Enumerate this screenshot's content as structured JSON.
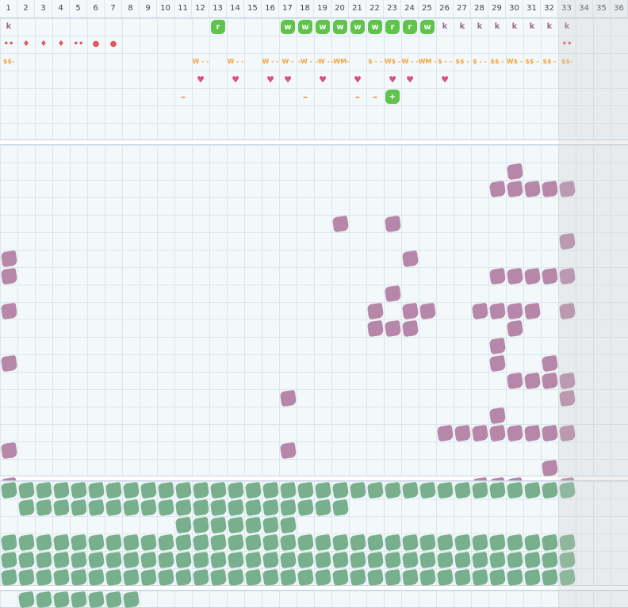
{
  "header": {
    "columns": [
      "1",
      "2",
      "3",
      "4",
      "5",
      "6",
      "7",
      "8",
      "9",
      "10",
      "11",
      "12",
      "13",
      "14",
      "15",
      "16",
      "17",
      "18",
      "19",
      "20",
      "21",
      "22",
      "23",
      "24",
      "25",
      "26",
      "27",
      "28",
      "29",
      "30",
      "31",
      "32",
      "33",
      "34",
      "35",
      "36"
    ]
  },
  "colors": {
    "k": "#9a6a8c",
    "drop": "#e0575d",
    "dollar": "#f3a53b",
    "heart": "#dd4f7e",
    "dash": "#f08a3a",
    "green_icon": "#5fc34c",
    "purple_blob": "#b687a8",
    "teal_blob": "#78b08e"
  },
  "top_rows": [
    {
      "row": 0,
      "items": [
        {
          "col": 1,
          "kind": "text",
          "text": "k",
          "color": "k"
        },
        {
          "col": 13,
          "kind": "icon",
          "text": "r"
        },
        {
          "col": 17,
          "kind": "icon",
          "text": "w"
        },
        {
          "col": 18,
          "kind": "icon",
          "text": "w"
        },
        {
          "col": 19,
          "kind": "icon",
          "text": "w"
        },
        {
          "col": 20,
          "kind": "icon",
          "text": "w"
        },
        {
          "col": 21,
          "kind": "icon",
          "text": "w"
        },
        {
          "col": 22,
          "kind": "icon",
          "text": "w"
        },
        {
          "col": 23,
          "kind": "icon",
          "text": "r"
        },
        {
          "col": 24,
          "kind": "icon",
          "text": "r"
        },
        {
          "col": 25,
          "kind": "icon",
          "text": "w"
        },
        {
          "col": 26,
          "kind": "text",
          "text": "k",
          "color": "k"
        },
        {
          "col": 27,
          "kind": "text",
          "text": "k",
          "color": "k"
        },
        {
          "col": 28,
          "kind": "text",
          "text": "k",
          "color": "k"
        },
        {
          "col": 29,
          "kind": "text",
          "text": "k",
          "color": "k"
        },
        {
          "col": 30,
          "kind": "text",
          "text": "k",
          "color": "k"
        },
        {
          "col": 31,
          "kind": "text",
          "text": "k",
          "color": "k"
        },
        {
          "col": 32,
          "kind": "text",
          "text": "k",
          "color": "k"
        },
        {
          "col": 33,
          "kind": "text",
          "text": "k",
          "color": "k"
        }
      ]
    },
    {
      "row": 1,
      "items": [
        {
          "col": 1,
          "kind": "text",
          "text": "••",
          "color": "drop"
        },
        {
          "col": 2,
          "kind": "text",
          "text": "♦",
          "color": "drop"
        },
        {
          "col": 3,
          "kind": "text",
          "text": "♦",
          "color": "drop"
        },
        {
          "col": 4,
          "kind": "text",
          "text": "♦",
          "color": "drop"
        },
        {
          "col": 5,
          "kind": "text",
          "text": "••",
          "color": "drop"
        },
        {
          "col": 6,
          "kind": "text",
          "text": "●",
          "color": "drop"
        },
        {
          "col": 7,
          "kind": "text",
          "text": "●",
          "color": "drop"
        },
        {
          "col": 33,
          "kind": "text",
          "text": "••",
          "color": "drop"
        }
      ]
    },
    {
      "row": 2,
      "items": [
        {
          "col": 1,
          "kind": "text",
          "text": "$$-",
          "color": "dollar"
        },
        {
          "col": 12,
          "kind": "text",
          "text": "W - -",
          "color": "dollar"
        },
        {
          "col": 14,
          "kind": "text",
          "text": "W - -",
          "color": "dollar"
        },
        {
          "col": 16,
          "kind": "text",
          "text": "W - -",
          "color": "dollar"
        },
        {
          "col": 17,
          "kind": "text",
          "text": "W -",
          "color": "dollar"
        },
        {
          "col": 18,
          "kind": "text",
          "text": "-W -",
          "color": "dollar"
        },
        {
          "col": 19,
          "kind": "text",
          "text": "-W -",
          "color": "dollar"
        },
        {
          "col": 20,
          "kind": "text",
          "text": "-WM-",
          "color": "dollar"
        },
        {
          "col": 22,
          "kind": "text",
          "text": "$ - -",
          "color": "dollar"
        },
        {
          "col": 23,
          "kind": "text",
          "text": "W$ -",
          "color": "dollar"
        },
        {
          "col": 24,
          "kind": "text",
          "text": "W - -",
          "color": "dollar"
        },
        {
          "col": 25,
          "kind": "text",
          "text": "WM -",
          "color": "dollar"
        },
        {
          "col": 26,
          "kind": "text",
          "text": "$ - -",
          "color": "dollar"
        },
        {
          "col": 27,
          "kind": "text",
          "text": "$$ -",
          "color": "dollar"
        },
        {
          "col": 28,
          "kind": "text",
          "text": "$ - -",
          "color": "dollar"
        },
        {
          "col": 29,
          "kind": "text",
          "text": "$$ -",
          "color": "dollar"
        },
        {
          "col": 30,
          "kind": "text",
          "text": "W$ -",
          "color": "dollar"
        },
        {
          "col": 31,
          "kind": "text",
          "text": "$$ -",
          "color": "dollar"
        },
        {
          "col": 32,
          "kind": "text",
          "text": "$$ -",
          "color": "dollar"
        },
        {
          "col": 33,
          "kind": "text",
          "text": "$$-",
          "color": "dollar"
        }
      ]
    },
    {
      "row": 3,
      "items": [
        {
          "col": 16,
          "kind": "heart"
        },
        {
          "col": 12,
          "kind": "heart"
        },
        {
          "col": 14,
          "kind": "heart"
        },
        {
          "col": 17,
          "kind": "heart"
        },
        {
          "col": 19,
          "kind": "heart"
        },
        {
          "col": 21,
          "kind": "heart"
        },
        {
          "col": 23,
          "kind": "heart"
        },
        {
          "col": 24,
          "kind": "heart"
        },
        {
          "col": 26,
          "kind": "heart"
        }
      ]
    },
    {
      "row": 4,
      "items": [
        {
          "col": 11,
          "kind": "dash"
        },
        {
          "col": 18,
          "kind": "dash"
        },
        {
          "col": 21,
          "kind": "dash"
        },
        {
          "col": 22,
          "kind": "dash"
        },
        {
          "col": 23,
          "kind": "icon",
          "text": "+"
        }
      ]
    }
  ],
  "purple_cells": [
    [
      1,
      30
    ],
    [
      2,
      29
    ],
    [
      2,
      30
    ],
    [
      2,
      31
    ],
    [
      2,
      32
    ],
    [
      2,
      33
    ],
    [
      4,
      20
    ],
    [
      4,
      23
    ],
    [
      5,
      33
    ],
    [
      6,
      1
    ],
    [
      6,
      24
    ],
    [
      7,
      1
    ],
    [
      7,
      29
    ],
    [
      7,
      30
    ],
    [
      7,
      31
    ],
    [
      7,
      32
    ],
    [
      7,
      33
    ],
    [
      8,
      23
    ],
    [
      9,
      1
    ],
    [
      9,
      22
    ],
    [
      9,
      24
    ],
    [
      9,
      25
    ],
    [
      9,
      28
    ],
    [
      9,
      29
    ],
    [
      9,
      30
    ],
    [
      9,
      31
    ],
    [
      9,
      33
    ],
    [
      10,
      22
    ],
    [
      10,
      23
    ],
    [
      10,
      24
    ],
    [
      10,
      30
    ],
    [
      11,
      29
    ],
    [
      12,
      1
    ],
    [
      12,
      29
    ],
    [
      12,
      32
    ],
    [
      13,
      30
    ],
    [
      13,
      31
    ],
    [
      13,
      32
    ],
    [
      13,
      33
    ],
    [
      14,
      17
    ],
    [
      14,
      33
    ],
    [
      15,
      29
    ],
    [
      16,
      26
    ],
    [
      16,
      27
    ],
    [
      16,
      28
    ],
    [
      16,
      29
    ],
    [
      16,
      30
    ],
    [
      16,
      31
    ],
    [
      16,
      32
    ],
    [
      16,
      33
    ],
    [
      17,
      1
    ],
    [
      17,
      17
    ],
    [
      18,
      32
    ],
    [
      19,
      1
    ],
    [
      19,
      28
    ],
    [
      19,
      29
    ],
    [
      19,
      30
    ],
    [
      19,
      33
    ],
    [
      20,
      28
    ]
  ],
  "teal_rows": [
    {
      "row": 0,
      "from": 1,
      "to": 33
    },
    {
      "row": 1,
      "from": 2,
      "to": 20
    },
    {
      "row": 2,
      "from": 11,
      "to": 17
    },
    {
      "row": 3,
      "from": 1,
      "to": 33
    },
    {
      "row": 4,
      "from": 1,
      "to": 33
    },
    {
      "row": 5,
      "from": 1,
      "to": 33
    }
  ],
  "bottom_teal": {
    "from": 2,
    "to": 8
  }
}
